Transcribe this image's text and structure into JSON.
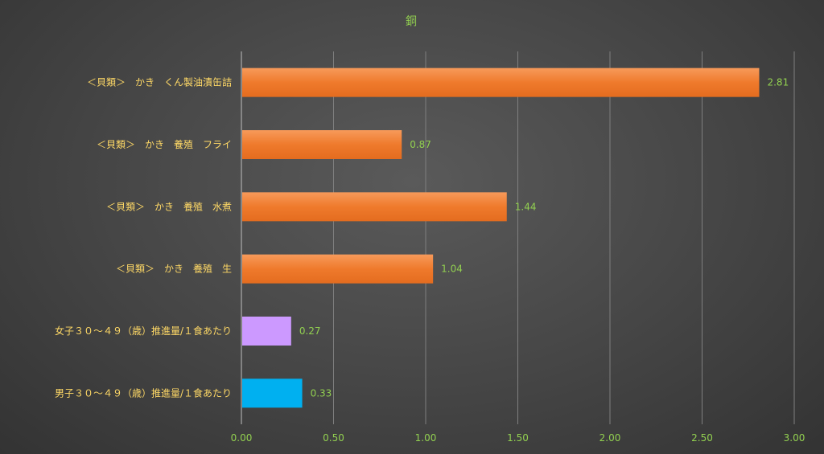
{
  "chart_data": {
    "type": "bar",
    "orientation": "horizontal",
    "title": "銅",
    "categories": [
      "＜貝類＞　かき　くん製油漬缶詰",
      "＜貝類＞　かき　養殖　フライ",
      "＜貝類＞　かき　養殖　水煮",
      "＜貝類＞　かき　養殖　生",
      "女子３０～４９（歳）推進量/１食あたり",
      "男子３０～４９（歳）推進量/１食あたり"
    ],
    "values": [
      2.81,
      0.87,
      1.44,
      1.04,
      0.27,
      0.33
    ],
    "value_labels": [
      "2.81",
      "0.87",
      "1.44",
      "1.04",
      "0.27",
      "0.33"
    ],
    "bar_colors": [
      "#f07a2a",
      "#f07a2a",
      "#f07a2a",
      "#f07a2a",
      "#cc99ff",
      "#00b0f0"
    ],
    "xlim": [
      0,
      3.0
    ],
    "x_ticks": [
      "0.00",
      "0.50",
      "1.00",
      "1.50",
      "2.00",
      "2.50",
      "3.00"
    ],
    "grid": true,
    "legend": "none"
  }
}
